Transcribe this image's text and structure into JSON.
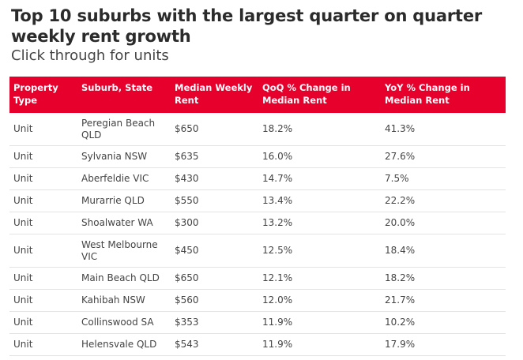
{
  "title": "Top 10 suburbs with the largest quarter on quarter weekly rent growth",
  "subtitle": "Click through for units",
  "colors": {
    "header_bg": "#e8002d",
    "header_text": "#ffffff",
    "row_divider": "#e3e3e3"
  },
  "chart_data": {
    "type": "table",
    "columns": [
      "Property Type",
      "Suburb, State",
      "Median Weekly Rent",
      "QoQ % Change in Median Rent",
      "YoY % Change in Median Rent"
    ],
    "rows": [
      [
        "Unit",
        "Peregian Beach QLD",
        "$650",
        "18.2%",
        "41.3%"
      ],
      [
        "Unit",
        "Sylvania NSW",
        "$635",
        "16.0%",
        "27.6%"
      ],
      [
        "Unit",
        "Aberfeldie VIC",
        "$430",
        "14.7%",
        "7.5%"
      ],
      [
        "Unit",
        "Murarrie QLD",
        "$550",
        "13.4%",
        "22.2%"
      ],
      [
        "Unit",
        "Shoalwater WA",
        "$300",
        "13.2%",
        "20.0%"
      ],
      [
        "Unit",
        "West Melbourne VIC",
        "$450",
        "12.5%",
        "18.4%"
      ],
      [
        "Unit",
        "Main Beach QLD",
        "$650",
        "12.1%",
        "18.2%"
      ],
      [
        "Unit",
        "Kahibah NSW",
        "$560",
        "12.0%",
        "21.7%"
      ],
      [
        "Unit",
        "Collinswood SA",
        "$353",
        "11.9%",
        "10.2%"
      ],
      [
        "Unit",
        "Helensvale QLD",
        "$543",
        "11.9%",
        "17.9%"
      ]
    ]
  }
}
